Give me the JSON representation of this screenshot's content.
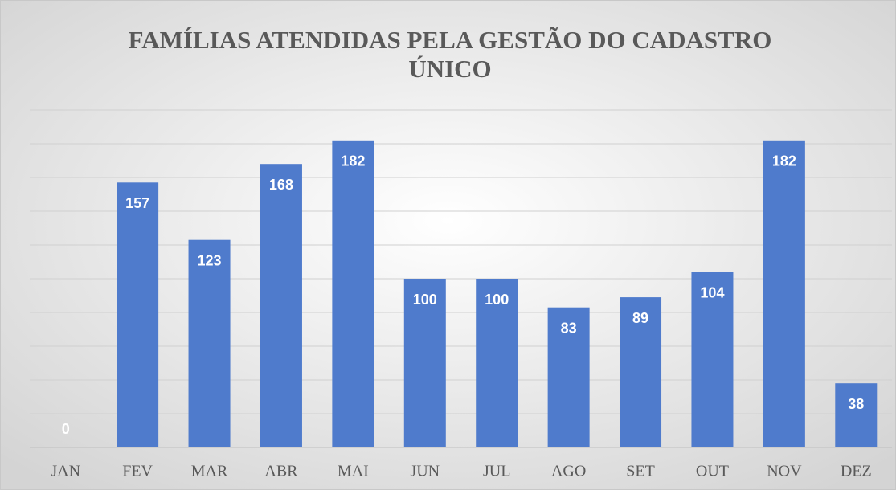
{
  "chart_data": {
    "type": "bar",
    "title": [
      "FAMÍLIAS ATENDIDAS PELA GESTÃO DO CADASTRO",
      "ÚNICO"
    ],
    "categories": [
      "JAN",
      "FEV",
      "MAR",
      "ABR",
      "MAI",
      "JUN",
      "JUL",
      "AGO",
      "SET",
      "OUT",
      "NOV",
      "DEZ"
    ],
    "values": [
      0,
      157,
      123,
      168,
      182,
      100,
      100,
      83,
      89,
      104,
      182,
      38
    ],
    "color": "#4f7bcc",
    "ylim": [
      0,
      200
    ],
    "yticks": [
      0,
      20,
      40,
      60,
      80,
      100,
      120,
      140,
      160,
      180,
      200
    ],
    "show_ytick_labels": false,
    "grid": true
  }
}
